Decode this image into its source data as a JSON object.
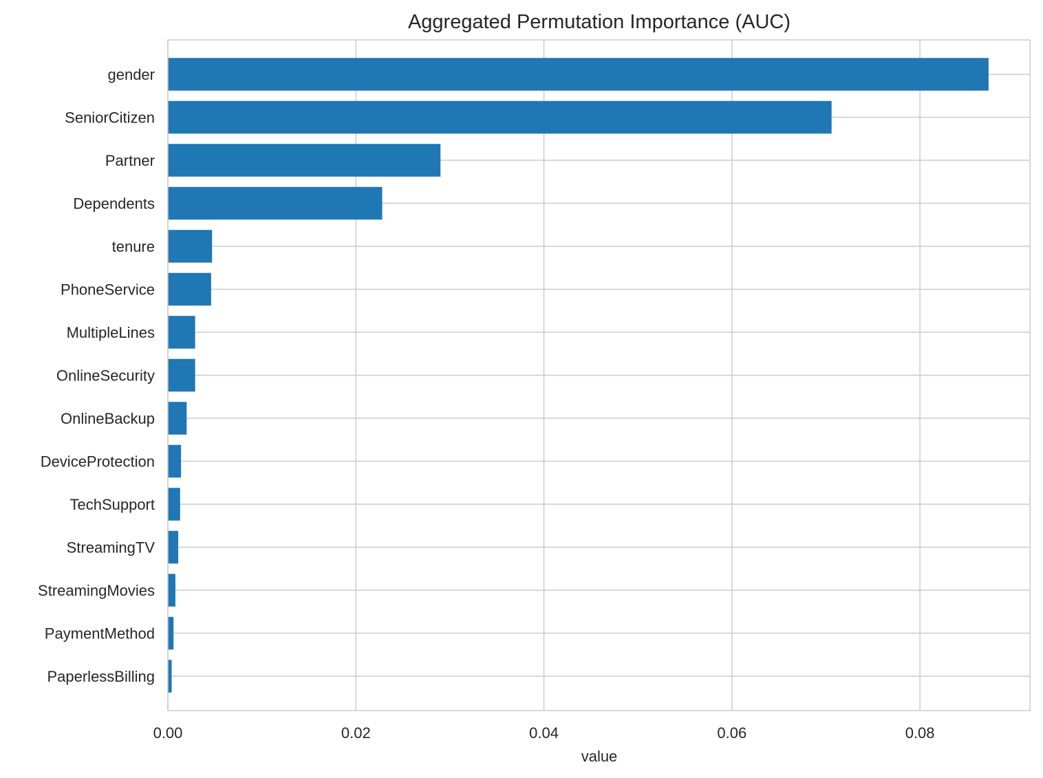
{
  "chart_data": {
    "type": "bar",
    "orientation": "horizontal",
    "title": "Aggregated Permutation Importance (AUC)",
    "xlabel": "value",
    "ylabel": "",
    "categories": [
      "gender",
      "SeniorCitizen",
      "Partner",
      "Dependents",
      "tenure",
      "PhoneService",
      "MultipleLines",
      "OnlineSecurity",
      "OnlineBackup",
      "DeviceProtection",
      "TechSupport",
      "StreamingTV",
      "StreamingMovies",
      "PaymentMethod",
      "PaperlessBilling"
    ],
    "values": [
      0.0873,
      0.0706,
      0.029,
      0.0228,
      0.0047,
      0.0046,
      0.0029,
      0.0029,
      0.002,
      0.0014,
      0.0013,
      0.0011,
      0.0008,
      0.0006,
      0.0004
    ],
    "xlim": [
      0,
      0.0917
    ],
    "xticks": [
      0,
      0.02,
      0.04,
      0.06,
      0.08
    ],
    "xtick_labels": [
      "0.00",
      "0.02",
      "0.04",
      "0.06",
      "0.08"
    ],
    "grid": true,
    "legend": "none",
    "bar_color": "#1f77b4",
    "grid_color": "#cccccc"
  }
}
